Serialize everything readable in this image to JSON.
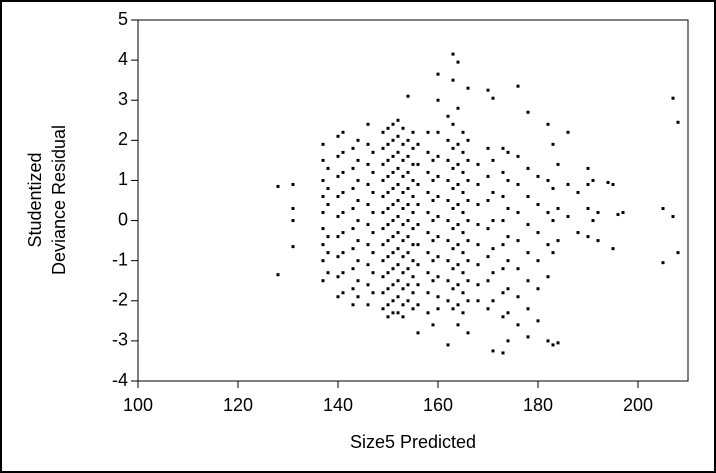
{
  "chart_data": {
    "type": "scatter",
    "x_label": "Size5 Predicted",
    "y_label": [
      "Studentized",
      "Deviance Residual"
    ],
    "xlim": [
      100,
      210
    ],
    "xticks": [
      100,
      120,
      140,
      160,
      180,
      200
    ],
    "ylim": [
      -4,
      5
    ],
    "yticks": [
      -4,
      -3,
      -2,
      -1,
      0,
      1,
      2,
      3,
      4,
      5
    ],
    "color": "#000000",
    "x": [
      128,
      128,
      131,
      131,
      131,
      131,
      137,
      137,
      137,
      137,
      137,
      137,
      137,
      137,
      137,
      138,
      138,
      138,
      138,
      138,
      138,
      140,
      140,
      140,
      140,
      140,
      140,
      140,
      140,
      140,
      141,
      141,
      141,
      141,
      141,
      141,
      141,
      141,
      141,
      143,
      143,
      143,
      143,
      143,
      143,
      143,
      143,
      143,
      144,
      144,
      144,
      144,
      144,
      144,
      144,
      144,
      144,
      146,
      146,
      146,
      146,
      146,
      146,
      146,
      146,
      146,
      146,
      147,
      147,
      147,
      147,
      147,
      147,
      147,
      147,
      149,
      149,
      149,
      149,
      149,
      149,
      149,
      149,
      149,
      149,
      149,
      149,
      150,
      150,
      150,
      150,
      150,
      150,
      150,
      150,
      150,
      150,
      150,
      150,
      150,
      151,
      151,
      151,
      151,
      151,
      151,
      151,
      151,
      151,
      151,
      151,
      151,
      151,
      152,
      152,
      152,
      152,
      152,
      152,
      152,
      152,
      152,
      152,
      152,
      152,
      152,
      153,
      153,
      153,
      153,
      153,
      153,
      153,
      153,
      153,
      153,
      153,
      153,
      153,
      154,
      154,
      154,
      154,
      154,
      154,
      154,
      154,
      154,
      154,
      154,
      154,
      155,
      155,
      155,
      155,
      155,
      155,
      155,
      155,
      155,
      155,
      155,
      155,
      156,
      156,
      156,
      156,
      156,
      156,
      156,
      156,
      156,
      156,
      158,
      158,
      158,
      158,
      158,
      158,
      158,
      158,
      158,
      158,
      159,
      159,
      159,
      159,
      159,
      159,
      159,
      159,
      160,
      160,
      160,
      160,
      160,
      160,
      160,
      160,
      160,
      160,
      160,
      160,
      162,
      162,
      162,
      162,
      162,
      162,
      162,
      162,
      162,
      162,
      162,
      163,
      163,
      163,
      163,
      163,
      163,
      163,
      163,
      163,
      163,
      163,
      163,
      164,
      164,
      164,
      164,
      164,
      164,
      164,
      164,
      164,
      164,
      164,
      164,
      165,
      165,
      165,
      165,
      165,
      165,
      165,
      165,
      165,
      165,
      166,
      166,
      166,
      166,
      166,
      166,
      166,
      166,
      166,
      166,
      166,
      168,
      168,
      168,
      168,
      168,
      168,
      168,
      168,
      170,
      170,
      170,
      170,
      170,
      170,
      170,
      170,
      171,
      171,
      171,
      171,
      171,
      171,
      171,
      171,
      173,
      173,
      173,
      173,
      173,
      173,
      173,
      173,
      173,
      174,
      174,
      174,
      174,
      174,
      174,
      174,
      174,
      176,
      176,
      176,
      176,
      176,
      176,
      176,
      176,
      178,
      178,
      178,
      178,
      178,
      178,
      178,
      178,
      180,
      180,
      180,
      180,
      180,
      180,
      182,
      182,
      182,
      182,
      182,
      182,
      183,
      183,
      183,
      183,
      183,
      184,
      184,
      184,
      184,
      186,
      186,
      186,
      188,
      188,
      190,
      190,
      190,
      190,
      191,
      191,
      192,
      192,
      194,
      195,
      195,
      196,
      197,
      205,
      205,
      207,
      207,
      208,
      208
    ],
    "values": [
      0.85,
      -1.35,
      0.9,
      0.3,
      0,
      -0.65,
      1.9,
      1.5,
      1,
      0.6,
      0.2,
      -0.2,
      -0.6,
      -1,
      -1.5,
      1.3,
      0.8,
      0.4,
      -0.4,
      -0.8,
      -1.3,
      2.1,
      1.6,
      1.1,
      0.6,
      0.1,
      -0.4,
      -0.9,
      -1.4,
      -1.9,
      2.2,
      1.7,
      1.2,
      0.7,
      0.2,
      -0.3,
      -0.8,
      -1.3,
      -1.8,
      1.8,
      1.3,
      0.8,
      0.3,
      -0.2,
      -0.7,
      -1.2,
      -1.7,
      -2.1,
      2.0,
      1.5,
      1.0,
      0.5,
      0,
      -0.5,
      -1.0,
      -1.5,
      -1.9,
      2.4,
      1.9,
      1.4,
      0.9,
      0.4,
      -0.1,
      -0.6,
      -1.1,
      -1.6,
      -2.1,
      1.7,
      1.2,
      0.7,
      0.2,
      -0.3,
      -0.8,
      -1.3,
      -1.8,
      2.2,
      1.8,
      1.4,
      1.0,
      0.6,
      0.2,
      -0.2,
      -0.6,
      -1.0,
      -1.4,
      -1.8,
      -2.2,
      2.3,
      1.9,
      1.5,
      1.1,
      0.7,
      0.3,
      -0.1,
      -0.5,
      -0.9,
      -1.3,
      -1.7,
      -2.1,
      -2.4,
      2.4,
      2.0,
      1.6,
      1.2,
      0.8,
      0.4,
      0,
      -0.4,
      -0.8,
      -1.2,
      -1.6,
      -2.0,
      -2.3,
      2.5,
      2.1,
      1.7,
      1.3,
      0.9,
      0.5,
      0.1,
      -0.3,
      -0.7,
      -1.1,
      -1.5,
      -1.9,
      -2.3,
      2.3,
      1.9,
      1.5,
      1.1,
      0.7,
      0.3,
      -0.1,
      -0.5,
      -0.9,
      -1.3,
      -1.7,
      -2.1,
      -2.4,
      3.1,
      2.0,
      1.6,
      1.2,
      0.8,
      0.4,
      0,
      -0.4,
      -0.8,
      -1.2,
      -1.6,
      -2.0,
      2.2,
      1.8,
      1.4,
      1.0,
      0.6,
      0.2,
      -0.2,
      -0.6,
      -1.0,
      -1.4,
      -1.8,
      -2.2,
      1.9,
      1.4,
      0.9,
      0.4,
      -0.1,
      -0.6,
      -1.1,
      -1.6,
      -2.1,
      -2.8,
      2.2,
      1.7,
      1.2,
      0.7,
      0.2,
      -0.3,
      -0.8,
      -1.3,
      -1.8,
      -2.3,
      1.5,
      1.0,
      0.5,
      0,
      -0.5,
      -1.0,
      -1.5,
      -2.6,
      3.65,
      3.0,
      2.2,
      1.6,
      1.1,
      0.6,
      0.1,
      -0.4,
      -0.9,
      -1.4,
      -1.9,
      -2.2,
      2.6,
      2.0,
      1.5,
      1.0,
      0.5,
      0,
      -0.5,
      -1.0,
      -1.5,
      -2.0,
      -3.1,
      4.15,
      3.5,
      2.4,
      1.8,
      1.3,
      0.8,
      0.3,
      -0.2,
      -0.7,
      -1.2,
      -1.7,
      -2.2,
      3.95,
      2.8,
      1.9,
      1.4,
      0.9,
      0.4,
      -0.1,
      -0.6,
      -1.1,
      -1.6,
      -2.1,
      -2.6,
      2.2,
      1.7,
      1.2,
      0.7,
      0.2,
      -0.3,
      -0.8,
      -1.3,
      -1.8,
      -2.3,
      3.3,
      2.0,
      1.5,
      1.0,
      0.5,
      0,
      -0.5,
      -1.0,
      -1.5,
      -2.0,
      -2.8,
      1.4,
      0.9,
      0.4,
      -0.1,
      -0.6,
      -1.1,
      -1.6,
      -2.0,
      3.25,
      1.8,
      1.1,
      0.5,
      -0.2,
      -0.9,
      -1.5,
      -2.2,
      3.05,
      1.5,
      0.7,
      0,
      -0.7,
      -1.3,
      -2.0,
      -3.25,
      1.8,
      1.2,
      0.6,
      0,
      -0.6,
      -1.2,
      -1.8,
      -2.4,
      -3.3,
      1.7,
      1.0,
      0.3,
      -0.4,
      -1.0,
      -1.7,
      -2.3,
      -3.0,
      3.35,
      1.6,
      0.9,
      0.2,
      -0.5,
      -1.2,
      -1.9,
      -2.6,
      2.7,
      1.3,
      0.6,
      -0.1,
      -0.8,
      -1.5,
      -2.2,
      -2.9,
      1.1,
      0.4,
      -0.3,
      -1.0,
      -1.7,
      -2.5,
      2.4,
      1.0,
      0.2,
      -0.6,
      -1.4,
      -3.0,
      1.9,
      0.8,
      0,
      -0.8,
      -3.1,
      1.4,
      0.3,
      -0.5,
      -3.05,
      2.2,
      0.9,
      0.1,
      0.7,
      -0.3,
      1.3,
      0.9,
      0.3,
      -0.4,
      1.0,
      0,
      -0.5,
      0.2,
      0.95,
      0.9,
      -0.7,
      0.15,
      0.2,
      0.3,
      -1.05,
      3.05,
      0.1,
      2.45,
      -0.8
    ]
  }
}
